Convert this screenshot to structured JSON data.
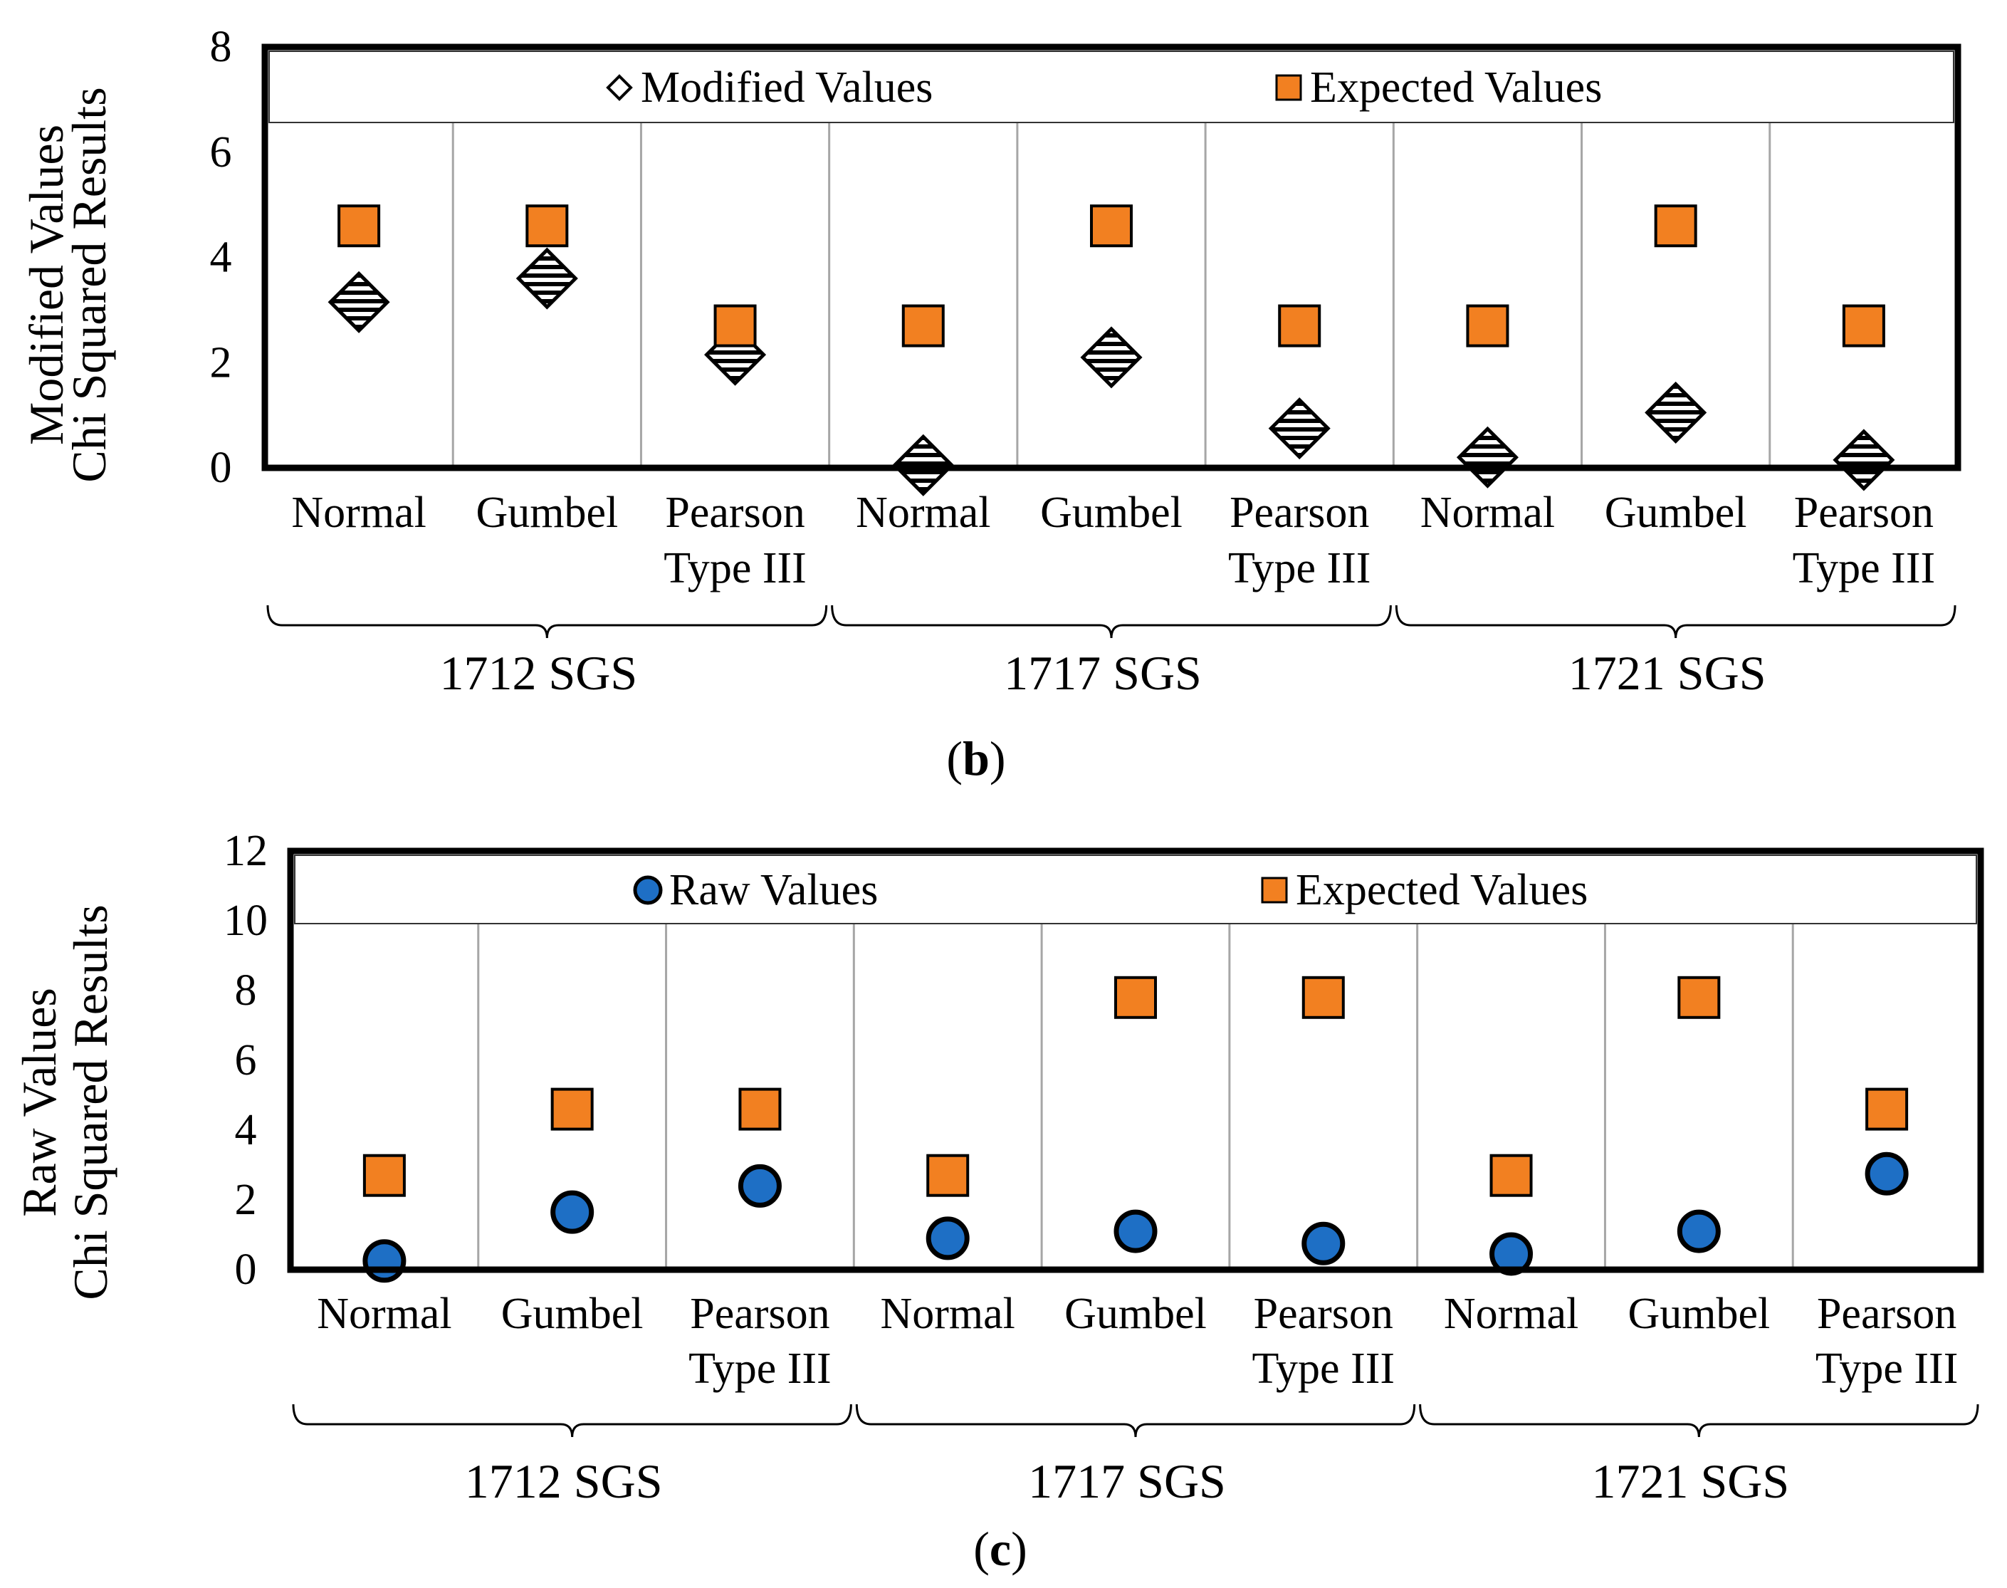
{
  "colors": {
    "expected_fill": "#F28021",
    "raw_fill": "#1E6FC5",
    "frame": "#000000",
    "divider": "#A6A6A6"
  },
  "chart_data": [
    {
      "id": "b",
      "type": "scatter",
      "panel_label": "b",
      "ylabel_lines": [
        "Modified Values",
        "Chi Squared Results"
      ],
      "ylim": [
        0,
        8
      ],
      "yticks": [
        "0",
        "2",
        "4",
        "6",
        "8"
      ],
      "categories": [
        {
          "label": "Normal",
          "group": "1712 SGS"
        },
        {
          "label": "Gumbel",
          "group": "1712 SGS"
        },
        {
          "label": "Pearson Type III",
          "group": "1712 SGS"
        },
        {
          "label": "Normal",
          "group": "1717 SGS"
        },
        {
          "label": "Gumbel",
          "group": "1717 SGS"
        },
        {
          "label": "Pearson Type III",
          "group": "1717 SGS"
        },
        {
          "label": "Normal",
          "group": "1721 SGS"
        },
        {
          "label": "Gumbel",
          "group": "1721 SGS"
        },
        {
          "label": "Pearson Type III",
          "group": "1721 SGS"
        }
      ],
      "groups": [
        "1712 SGS",
        "1717 SGS",
        "1721 SGS"
      ],
      "legend": [
        "Modified Values",
        "Expected Values"
      ],
      "series": [
        {
          "name": "Modified Values",
          "marker": "diamond",
          "values": [
            3.15,
            3.6,
            2.15,
            0.05,
            2.1,
            0.75,
            0.2,
            1.05,
            0.15
          ]
        },
        {
          "name": "Expected Values",
          "marker": "square",
          "values": [
            4.6,
            4.6,
            2.7,
            2.7,
            4.6,
            2.7,
            2.7,
            4.6,
            2.7
          ]
        }
      ]
    },
    {
      "id": "c",
      "type": "scatter",
      "panel_label": "c",
      "ylabel_lines": [
        "Raw Values",
        "Chi Squared Results"
      ],
      "ylim": [
        0,
        12
      ],
      "yticks": [
        "0",
        "2",
        "4",
        "6",
        "8",
        "10",
        "12"
      ],
      "categories": [
        {
          "label": "Normal",
          "group": "1712 SGS"
        },
        {
          "label": "Gumbel",
          "group": "1712 SGS"
        },
        {
          "label": "Pearson Type III",
          "group": "1712 SGS"
        },
        {
          "label": "Normal",
          "group": "1717 SGS"
        },
        {
          "label": "Gumbel",
          "group": "1717 SGS"
        },
        {
          "label": "Pearson Type III",
          "group": "1717 SGS"
        },
        {
          "label": "Normal",
          "group": "1721 SGS"
        },
        {
          "label": "Gumbel",
          "group": "1721 SGS"
        },
        {
          "label": "Pearson Type III",
          "group": "1721 SGS"
        }
      ],
      "groups": [
        "1712 SGS",
        "1717 SGS",
        "1721 SGS"
      ],
      "legend": [
        "Raw Values",
        "Expected Values"
      ],
      "series": [
        {
          "name": "Raw Values",
          "marker": "circle",
          "values": [
            0.25,
            1.65,
            2.4,
            0.9,
            1.1,
            0.75,
            0.45,
            1.1,
            2.75
          ]
        },
        {
          "name": "Expected Values",
          "marker": "square",
          "values": [
            2.7,
            4.6,
            4.6,
            2.7,
            7.8,
            7.8,
            2.7,
            7.8,
            4.6
          ]
        }
      ]
    }
  ]
}
